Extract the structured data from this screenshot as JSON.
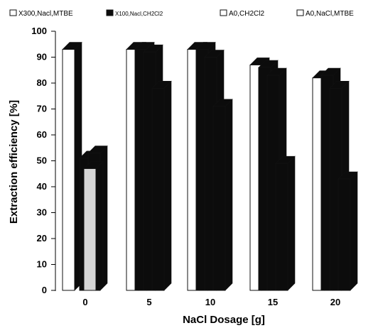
{
  "colors": {
    "white_bar": "#ffffff",
    "black_bar": "#0c0c0c",
    "gray_bar": "#d6d6d6",
    "outline": "#111111"
  },
  "chart_data": {
    "type": "bar",
    "style": "3d-grouped",
    "categories": [
      "0",
      "5",
      "10",
      "15",
      "20"
    ],
    "series": [
      {
        "name": "X300,Nacl,MTBE",
        "values": [
          93,
          93,
          93,
          87,
          82
        ]
      },
      {
        "name": "X100,Nacl,CH2Cl2",
        "values": [
          0,
          93,
          93,
          86,
          83
        ]
      },
      {
        "name": "A0,CH2Cl2",
        "values": [
          51,
          92,
          90,
          83,
          78
        ]
      },
      {
        "name": "A0,NaCl,MTBE",
        "values": [
          53,
          78,
          71,
          49,
          43
        ]
      }
    ],
    "gray_values": [
      47,
      0,
      0,
      0,
      0
    ],
    "xlabel": "NaCl Dosage  [g]",
    "ylabel": "Extraction  efficiency  [%]",
    "yticks": [
      "0",
      "10",
      "20",
      "30",
      "40",
      "50",
      "60",
      "70",
      "80",
      "90",
      "100"
    ],
    "ylim": [
      0,
      100
    ],
    "legend_position": "top",
    "grid": false
  }
}
